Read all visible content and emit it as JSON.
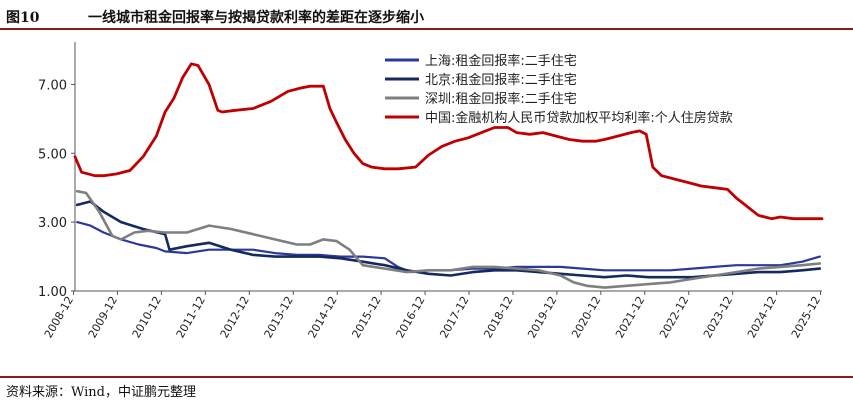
{
  "header": {
    "figure_no": "图10",
    "title": "一线城市租金回报率与按揭贷款利率的差距在逐步缩小"
  },
  "footer": {
    "source": "资料来源：Wind，中证鹏元整理"
  },
  "chart_data": {
    "type": "line",
    "title": "一线城市租金回报率与按揭贷款利率的差距在逐步缩小",
    "xlabel": "",
    "ylabel": "",
    "ylim": [
      1.0,
      8.0
    ],
    "yticks": [
      1.0,
      3.0,
      5.0,
      7.0
    ],
    "ytick_labels": [
      "1.00",
      "3.00",
      "5.00",
      "7.00"
    ],
    "xlim": [
      2008.95,
      2025.95
    ],
    "xtick_labels": [
      "2008-12",
      "2009-12",
      "2010-12",
      "2011-12",
      "2012-12",
      "2013-12",
      "2014-12",
      "2015-12",
      "2016-12",
      "2017-12",
      "2018-12",
      "2019-12",
      "2020-12",
      "2021-12",
      "2022-12",
      "2023-12",
      "2024-12",
      "2025-12"
    ],
    "grid": false,
    "legend_position": "top-right",
    "series": [
      {
        "name": "上海:租金回报率:二手住宅",
        "color": "#2B3A9A",
        "x": [
          2009.0,
          2009.3,
          2009.6,
          2010.0,
          2010.4,
          2010.8,
          2011.0,
          2011.5,
          2012.0,
          2012.5,
          2013.0,
          2013.5,
          2014.0,
          2014.5,
          2015.0,
          2015.5,
          2016.0,
          2016.3,
          2016.6,
          2017.0,
          2017.5,
          2018.0,
          2018.5,
          2019.0,
          2019.5,
          2020.0,
          2020.5,
          2021.0,
          2021.5,
          2022.0,
          2022.5,
          2023.0,
          2023.5,
          2024.0,
          2024.5,
          2025.0,
          2025.5,
          2025.9
        ],
        "y": [
          3.0,
          2.9,
          2.7,
          2.5,
          2.35,
          2.25,
          2.15,
          2.1,
          2.2,
          2.2,
          2.2,
          2.1,
          2.05,
          2.05,
          2.0,
          2.0,
          1.95,
          1.7,
          1.55,
          1.6,
          1.6,
          1.65,
          1.65,
          1.7,
          1.7,
          1.7,
          1.65,
          1.6,
          1.6,
          1.6,
          1.6,
          1.65,
          1.7,
          1.75,
          1.75,
          1.75,
          1.85,
          2.0
        ]
      },
      {
        "name": "北京:租金回报率:二手住宅",
        "color": "#152A5E",
        "x": [
          2009.0,
          2009.3,
          2009.6,
          2010.0,
          2010.5,
          2011.0,
          2011.1,
          2011.5,
          2012.0,
          2012.5,
          2013.0,
          2013.5,
          2014.0,
          2014.5,
          2015.0,
          2015.5,
          2016.0,
          2016.5,
          2017.0,
          2017.5,
          2018.0,
          2018.5,
          2019.0,
          2019.5,
          2020.0,
          2020.5,
          2021.0,
          2021.5,
          2022.0,
          2022.5,
          2023.0,
          2023.5,
          2024.0,
          2024.5,
          2025.0,
          2025.5,
          2025.9
        ],
        "y": [
          3.5,
          3.6,
          3.3,
          3.0,
          2.8,
          2.65,
          2.2,
          2.3,
          2.4,
          2.2,
          2.05,
          2.0,
          2.0,
          2.0,
          1.95,
          1.85,
          1.75,
          1.6,
          1.5,
          1.45,
          1.55,
          1.6,
          1.6,
          1.55,
          1.5,
          1.45,
          1.4,
          1.45,
          1.4,
          1.4,
          1.4,
          1.45,
          1.5,
          1.55,
          1.55,
          1.6,
          1.65
        ]
      },
      {
        "name": "深圳:租金回报率:二手住宅",
        "color": "#7F7F7F",
        "x": [
          2009.0,
          2009.2,
          2009.5,
          2009.8,
          2010.0,
          2010.3,
          2010.6,
          2011.0,
          2011.5,
          2012.0,
          2012.5,
          2013.0,
          2013.5,
          2014.0,
          2014.3,
          2014.6,
          2014.9,
          2015.2,
          2015.5,
          2016.0,
          2016.5,
          2017.0,
          2017.5,
          2018.0,
          2018.5,
          2019.0,
          2019.5,
          2020.0,
          2020.3,
          2020.6,
          2021.0,
          2021.5,
          2022.0,
          2022.5,
          2023.0,
          2023.5,
          2024.0,
          2024.5,
          2025.0,
          2025.5,
          2025.9
        ],
        "y": [
          3.9,
          3.85,
          3.3,
          2.6,
          2.5,
          2.7,
          2.75,
          2.7,
          2.7,
          2.9,
          2.8,
          2.65,
          2.5,
          2.35,
          2.35,
          2.5,
          2.45,
          2.2,
          1.75,
          1.65,
          1.55,
          1.6,
          1.6,
          1.7,
          1.7,
          1.65,
          1.6,
          1.45,
          1.25,
          1.15,
          1.1,
          1.15,
          1.2,
          1.25,
          1.35,
          1.45,
          1.55,
          1.65,
          1.7,
          1.75,
          1.8
        ]
      },
      {
        "name": "中国:金融机构人民币贷款加权平均利率:个人住房贷款",
        "color": "#C00000",
        "x": [
          2008.95,
          2009.1,
          2009.4,
          2009.6,
          2009.9,
          2010.2,
          2010.5,
          2010.8,
          2011.0,
          2011.2,
          2011.4,
          2011.6,
          2011.75,
          2012.0,
          2012.2,
          2012.3,
          2012.6,
          2013.0,
          2013.4,
          2013.8,
          2014.1,
          2014.3,
          2014.6,
          2014.75,
          2014.9,
          2015.1,
          2015.3,
          2015.5,
          2015.7,
          2016.0,
          2016.3,
          2016.7,
          2017.0,
          2017.3,
          2017.6,
          2017.9,
          2018.2,
          2018.5,
          2018.8,
          2019.0,
          2019.3,
          2019.6,
          2019.9,
          2020.2,
          2020.5,
          2020.8,
          2021.0,
          2021.3,
          2021.6,
          2021.8,
          2021.95,
          2022.1,
          2022.3,
          2022.6,
          2022.9,
          2023.2,
          2023.5,
          2023.8,
          2024.0,
          2024.2,
          2024.5,
          2024.8,
          2025.0,
          2025.3,
          2025.6,
          2025.95
        ],
        "y": [
          4.9,
          4.45,
          4.35,
          4.35,
          4.4,
          4.5,
          4.9,
          5.5,
          6.2,
          6.6,
          7.2,
          7.6,
          7.55,
          7.0,
          6.25,
          6.2,
          6.25,
          6.3,
          6.5,
          6.8,
          6.9,
          6.95,
          6.95,
          6.3,
          5.9,
          5.4,
          5.0,
          4.7,
          4.6,
          4.55,
          4.55,
          4.6,
          4.95,
          5.2,
          5.35,
          5.45,
          5.6,
          5.75,
          5.75,
          5.6,
          5.55,
          5.6,
          5.5,
          5.4,
          5.35,
          5.35,
          5.4,
          5.5,
          5.6,
          5.65,
          5.55,
          4.6,
          4.35,
          4.25,
          4.15,
          4.05,
          4.0,
          3.95,
          3.7,
          3.5,
          3.2,
          3.1,
          3.15,
          3.1,
          3.1,
          3.1
        ]
      }
    ]
  }
}
